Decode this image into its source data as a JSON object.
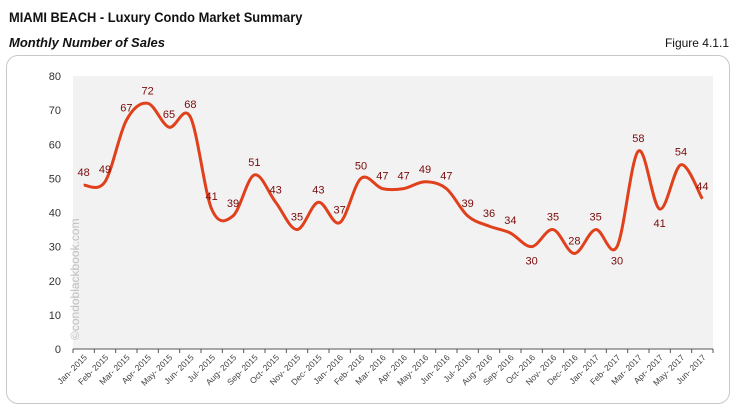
{
  "header": {
    "title": "MIAMI BEACH - Luxury Condo Market Summary",
    "subtitle": "Monthly Number of Sales",
    "figure": "Figure 4.1.1"
  },
  "watermark": "©condoblackbook.com",
  "chart_data": {
    "type": "line",
    "title": "Monthly Number of Sales",
    "xlabel": "",
    "ylabel": "",
    "ylim": [
      0,
      80
    ],
    "yticks": [
      0,
      10,
      20,
      30,
      40,
      50,
      60,
      70,
      80
    ],
    "grid": false,
    "line_color": "#e0401c",
    "label_color": "#7a0a0a",
    "plot_background": "#f2f2f2",
    "categories": [
      "Jan- 2015",
      "Feb- 2015",
      "Mar- 2015",
      "Apr- 2015",
      "May- 2015",
      "Jun- 2015",
      "Jul- 2015",
      "Aug- 2015",
      "Sep- 2015",
      "Oct- 2015",
      "Nov- 2015",
      "Dec- 2015",
      "Jan- 2016",
      "Feb- 2016",
      "Mar- 2016",
      "Apr- 2016",
      "May- 2016",
      "Jun- 2016",
      "Jul- 2016",
      "Aug- 2016",
      "Sep- 2016",
      "Oct- 2016",
      "Nov- 2016",
      "Dec- 2016",
      "Jan- 2017",
      "Feb- 2017",
      "Mar- 2017",
      "Apr- 2017",
      "May- 2017",
      "Jun- 2017"
    ],
    "values": [
      48,
      49,
      67,
      72,
      65,
      68,
      41,
      39,
      51,
      43,
      35,
      43,
      37,
      50,
      47,
      47,
      49,
      47,
      39,
      36,
      34,
      30,
      35,
      28,
      35,
      30,
      58,
      41,
      54,
      44
    ]
  }
}
